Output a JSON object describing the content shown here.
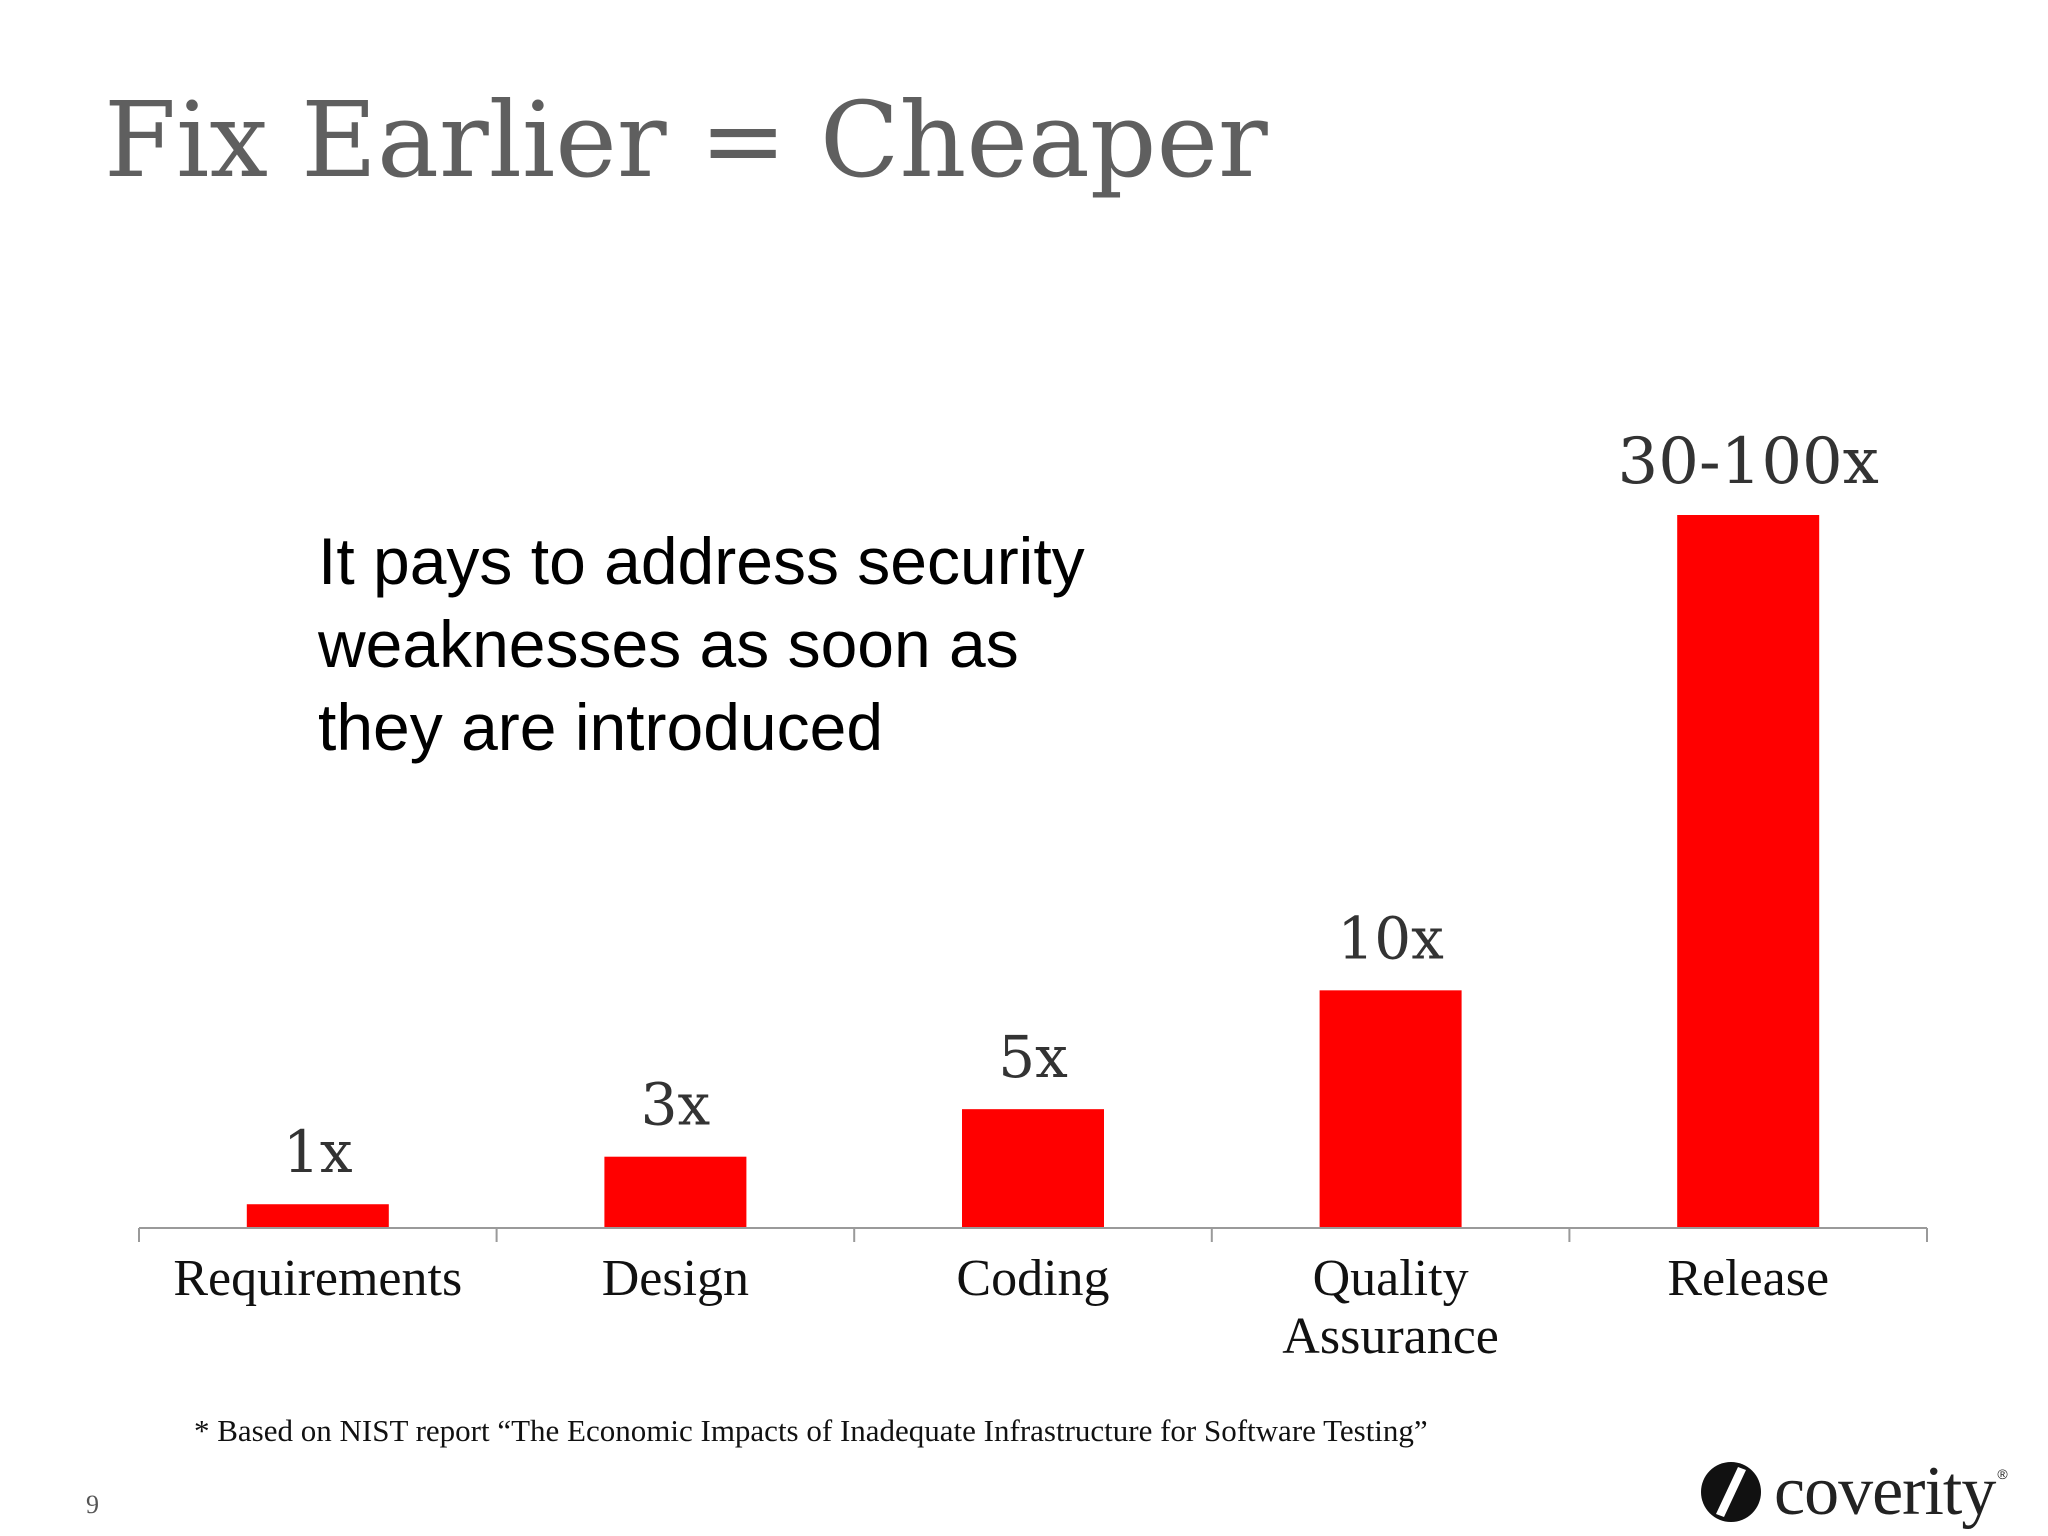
{
  "slide": {
    "title": "Fix Earlier = Cheaper",
    "callout_lines": [
      "It pays to address security",
      "weaknesses as soon as",
      "they are introduced"
    ],
    "footnote": "* Based on NIST report “The Economic Impacts of Inadequate Infrastructure for Software Testing”",
    "page_number": "9",
    "logo": {
      "text": "coverity",
      "reg_mark": "®",
      "icon": "coverity-slash-icon"
    }
  },
  "colors": {
    "bar": "#ff0000",
    "title": "#5f5f5f",
    "axis": "#9a9a9a"
  },
  "chart_data": {
    "type": "bar",
    "title": "",
    "xlabel": "",
    "ylabel": "",
    "categories": [
      [
        "Requirements"
      ],
      [
        "Design"
      ],
      [
        "Coding"
      ],
      [
        "Quality",
        "Assurance"
      ],
      [
        "Release"
      ]
    ],
    "values": [
      1,
      3,
      5,
      10,
      30
    ],
    "data_labels": [
      "1x",
      "3x",
      "5x",
      "10x",
      "30-100x"
    ],
    "ylim": [
      0,
      30
    ],
    "grid": false,
    "legend": "none"
  }
}
